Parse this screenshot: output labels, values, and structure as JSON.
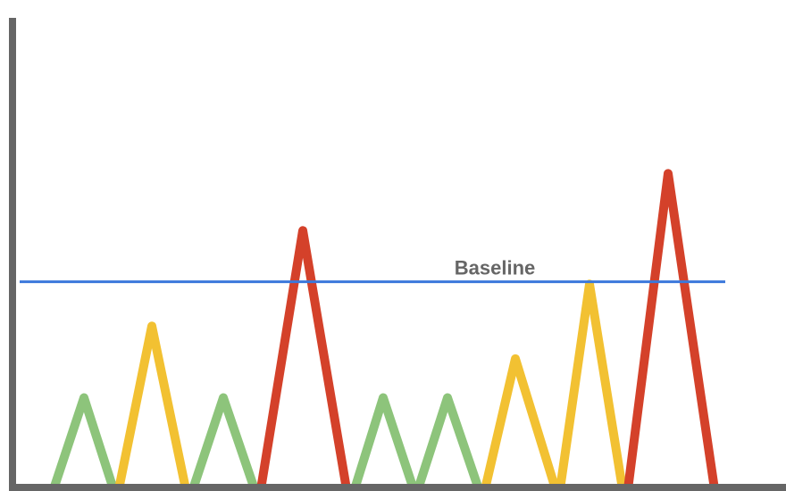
{
  "chart_data": {
    "type": "line",
    "title": "",
    "xlabel": "",
    "ylabel": "",
    "xlim": [
      0,
      880
    ],
    "ylim": [
      0,
      100
    ],
    "baseline": {
      "label": "Baseline",
      "value": 42.2,
      "color": "#3b78db"
    },
    "colors": {
      "green": "#8dc47b",
      "yellow": "#f2c132",
      "red": "#d4412a",
      "axis": "#666666"
    },
    "peaks": [
      {
        "x_start": 60,
        "x_peak": 94,
        "x_end": 127,
        "height": 18.4,
        "color": "green"
      },
      {
        "x_start": 133,
        "x_peak": 170,
        "x_end": 208,
        "height": 33.1,
        "color": "yellow"
      },
      {
        "x_start": 216,
        "x_peak": 250,
        "x_end": 285,
        "height": 18.4,
        "color": "green"
      },
      {
        "x_start": 292,
        "x_peak": 339,
        "x_end": 388,
        "height": 52.7,
        "color": "red"
      },
      {
        "x_start": 397,
        "x_peak": 429,
        "x_end": 463,
        "height": 18.4,
        "color": "green"
      },
      {
        "x_start": 468,
        "x_peak": 501,
        "x_end": 536,
        "height": 18.4,
        "color": "green"
      },
      {
        "x_start": 543,
        "x_peak": 577,
        "x_end": 622,
        "height": 26.4,
        "color": "yellow"
      },
      {
        "x_start": 627,
        "x_peak": 660,
        "x_end": 697,
        "height": 41.7,
        "color": "yellow"
      },
      {
        "x_start": 703,
        "x_peak": 748,
        "x_end": 800,
        "height": 64.4,
        "color": "red"
      }
    ]
  }
}
